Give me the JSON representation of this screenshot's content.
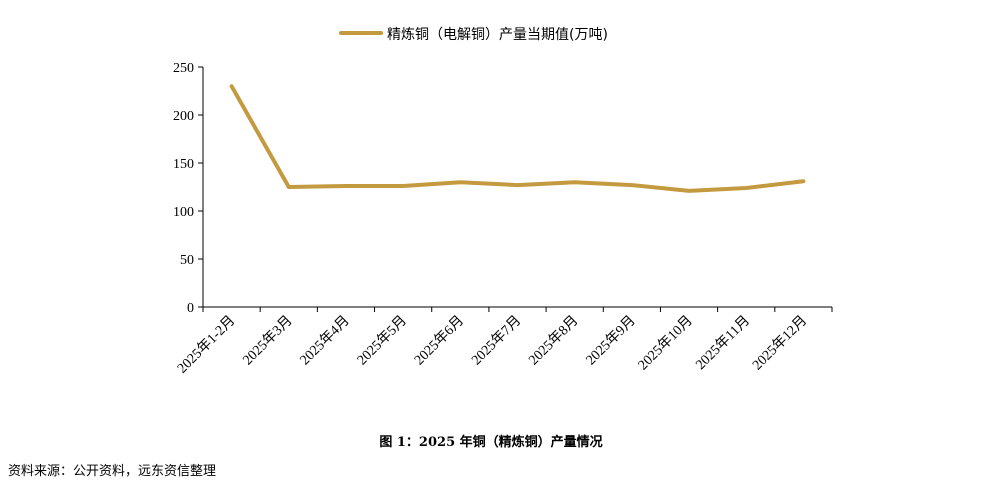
{
  "caption": "图 1：2025 年铜（精炼铜）产量情况",
  "source": "资料来源：公开资料，远东资信整理",
  "colors": {
    "series": "#C39A3F",
    "axis": "#000000"
  },
  "chart_data": {
    "type": "line",
    "title": "",
    "xlabel": "",
    "ylabel": "",
    "legend_position": "top-center",
    "grid": false,
    "ylim": [
      0,
      250
    ],
    "yticks": [
      0,
      50,
      100,
      150,
      200,
      250
    ],
    "categories": [
      "2025年1-2月",
      "2025年3月",
      "2025年4月",
      "2025年5月",
      "2025年6月",
      "2025年7月",
      "2025年8月",
      "2025年9月",
      "2025年10月",
      "2025年11月",
      "2025年12月"
    ],
    "series": [
      {
        "name": "精炼铜（电解铜）产量当期值(万吨)",
        "values": [
          230,
          125,
          126,
          126,
          130,
          127,
          130,
          127,
          121,
          124,
          131
        ]
      }
    ]
  }
}
